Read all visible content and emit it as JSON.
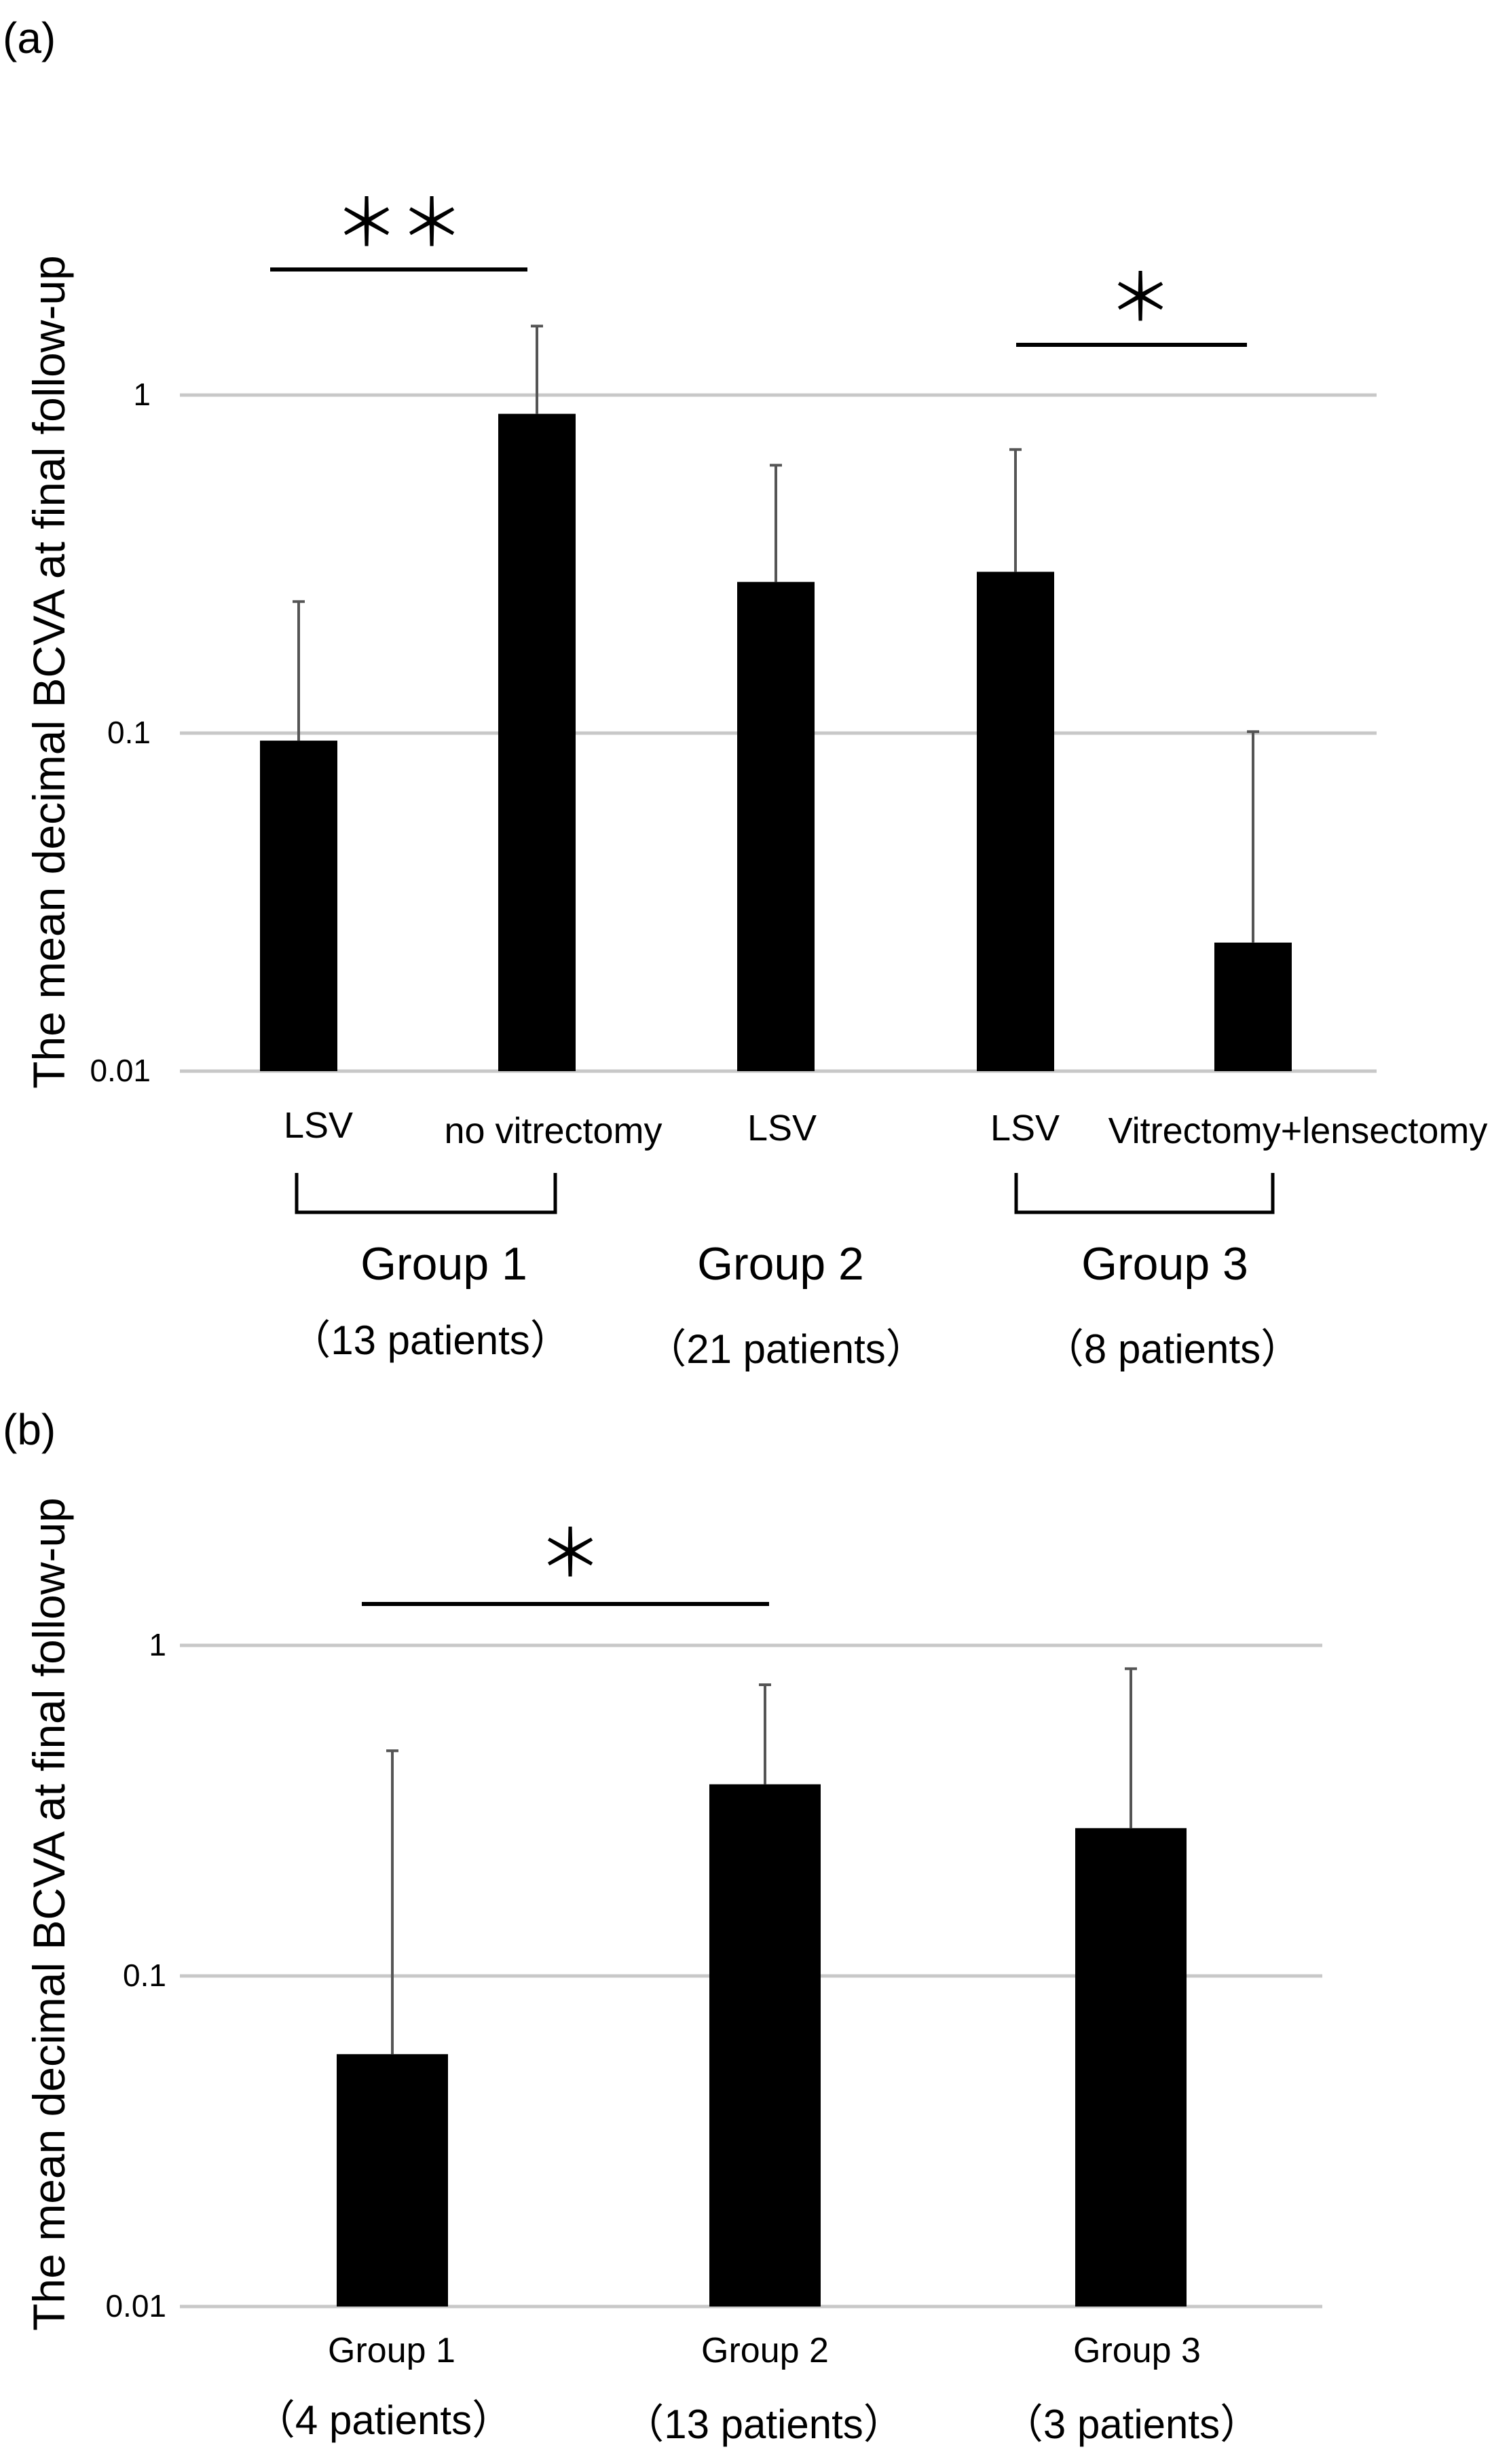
{
  "chart_data": [
    {
      "panel": "(a)",
      "type": "bar",
      "yscale": "log",
      "ylabel": "The mean decimal BCVA at final follow-up",
      "ylim": [
        0.01,
        1
      ],
      "yticks": [
        "0.01",
        "0.1",
        "1"
      ],
      "grid": true,
      "categories": [
        "LSV",
        "no vitrectomy",
        "LSV",
        "LSV",
        "Vitrectomy+lensectomy"
      ],
      "values": [
        0.095,
        0.88,
        0.28,
        0.3,
        0.024
      ],
      "error_upper": [
        0.245,
        1.6,
        0.62,
        0.69,
        0.101
      ],
      "groups": [
        {
          "name": "Group 1",
          "patients": "（13 patients）"
        },
        {
          "name": "Group 2",
          "patients": "（21 patients）"
        },
        {
          "name": "Group 3",
          "patients": "（8 patients）"
        }
      ],
      "significance": [
        {
          "label": "＊＊",
          "between": "Group 1 LSV vs no vitrectomy"
        },
        {
          "label": "＊",
          "between": "Group 3 LSV vs Vitrectomy+lensectomy"
        }
      ]
    },
    {
      "panel": "(b)",
      "type": "bar",
      "yscale": "log",
      "ylabel": "The mean decimal BCVA at final follow-up",
      "ylim": [
        0.01,
        1
      ],
      "yticks": [
        "0.01",
        "0.1",
        "1"
      ],
      "grid": true,
      "categories": [
        "Group 1",
        "Group 2",
        "Group 3"
      ],
      "patients": [
        "（4 patients）",
        "（13 patients）",
        "（3 patients）"
      ],
      "values": [
        0.058,
        0.38,
        0.28
      ],
      "error_upper": [
        0.48,
        0.76,
        0.85
      ],
      "significance": [
        {
          "label": "＊",
          "between": "Group 1 vs Group 2"
        }
      ]
    }
  ]
}
